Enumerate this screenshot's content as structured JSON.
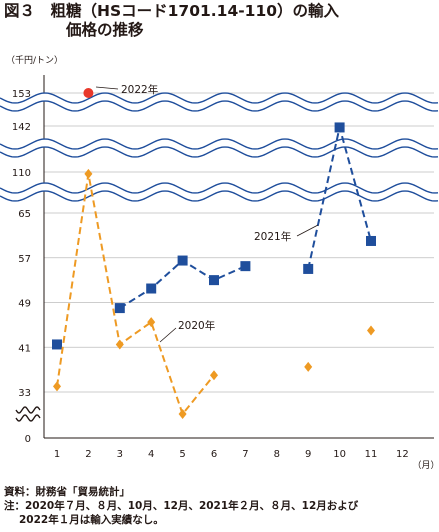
{
  "title": {
    "line1": "図３　粗糖（HSコード1701.14-110）の輸入",
    "line2": "価格の推移"
  },
  "chart_data": {
    "type": "line",
    "y_unit": "（千円/トン）",
    "x_unit": "（月）",
    "categories": [
      "1",
      "2",
      "3",
      "4",
      "5",
      "6",
      "7",
      "8",
      "9",
      "10",
      "11",
      "12"
    ],
    "y_tick_labels": [
      "0",
      "33",
      "41",
      "49",
      "57",
      "65",
      "110",
      "142",
      "153"
    ],
    "y_axis_broken": true,
    "grid": true,
    "series": [
      {
        "name": "2022年",
        "color": "#e8382a",
        "marker": "circle",
        "line": "none",
        "points": [
          {
            "x": 2,
            "y": 153
          }
        ]
      },
      {
        "name": "2021年",
        "color": "#1f4e9c",
        "marker": "square",
        "line": "dashed",
        "points": [
          {
            "x": 1,
            "y": 41.5
          },
          {
            "x": 3,
            "y": 48
          },
          {
            "x": 4,
            "y": 51.5
          },
          {
            "x": 5,
            "y": 56.5
          },
          {
            "x": 6,
            "y": 53
          },
          {
            "x": 7,
            "y": 55.5
          },
          {
            "x": 9,
            "y": 55
          },
          {
            "x": 10,
            "y": 141
          },
          {
            "x": 11,
            "y": 60
          }
        ],
        "segments": [
          [
            1
          ],
          [
            3,
            4,
            5,
            6,
            7
          ],
          [
            9,
            10,
            11
          ]
        ]
      },
      {
        "name": "2020年",
        "color": "#ee9a23",
        "marker": "diamond",
        "line": "dashed",
        "points": [
          {
            "x": 1,
            "y": 34
          },
          {
            "x": 2,
            "y": 108
          },
          {
            "x": 3,
            "y": 41.5
          },
          {
            "x": 4,
            "y": 45.5
          },
          {
            "x": 5,
            "y": 29
          },
          {
            "x": 6,
            "y": 36
          },
          {
            "x": 9,
            "y": 37.5
          },
          {
            "x": 11,
            "y": 44
          }
        ],
        "segments": [
          [
            1,
            2,
            3,
            4,
            5,
            6
          ],
          [
            9
          ],
          [
            11
          ]
        ]
      }
    ]
  },
  "notes": {
    "source": "資料：財務省「貿易統計」",
    "note_line1": "注：2020年７月、８月、10月、12月、2021年２月、８月、12月および",
    "note_line2": "2022年１月は輸入実績なし。"
  }
}
